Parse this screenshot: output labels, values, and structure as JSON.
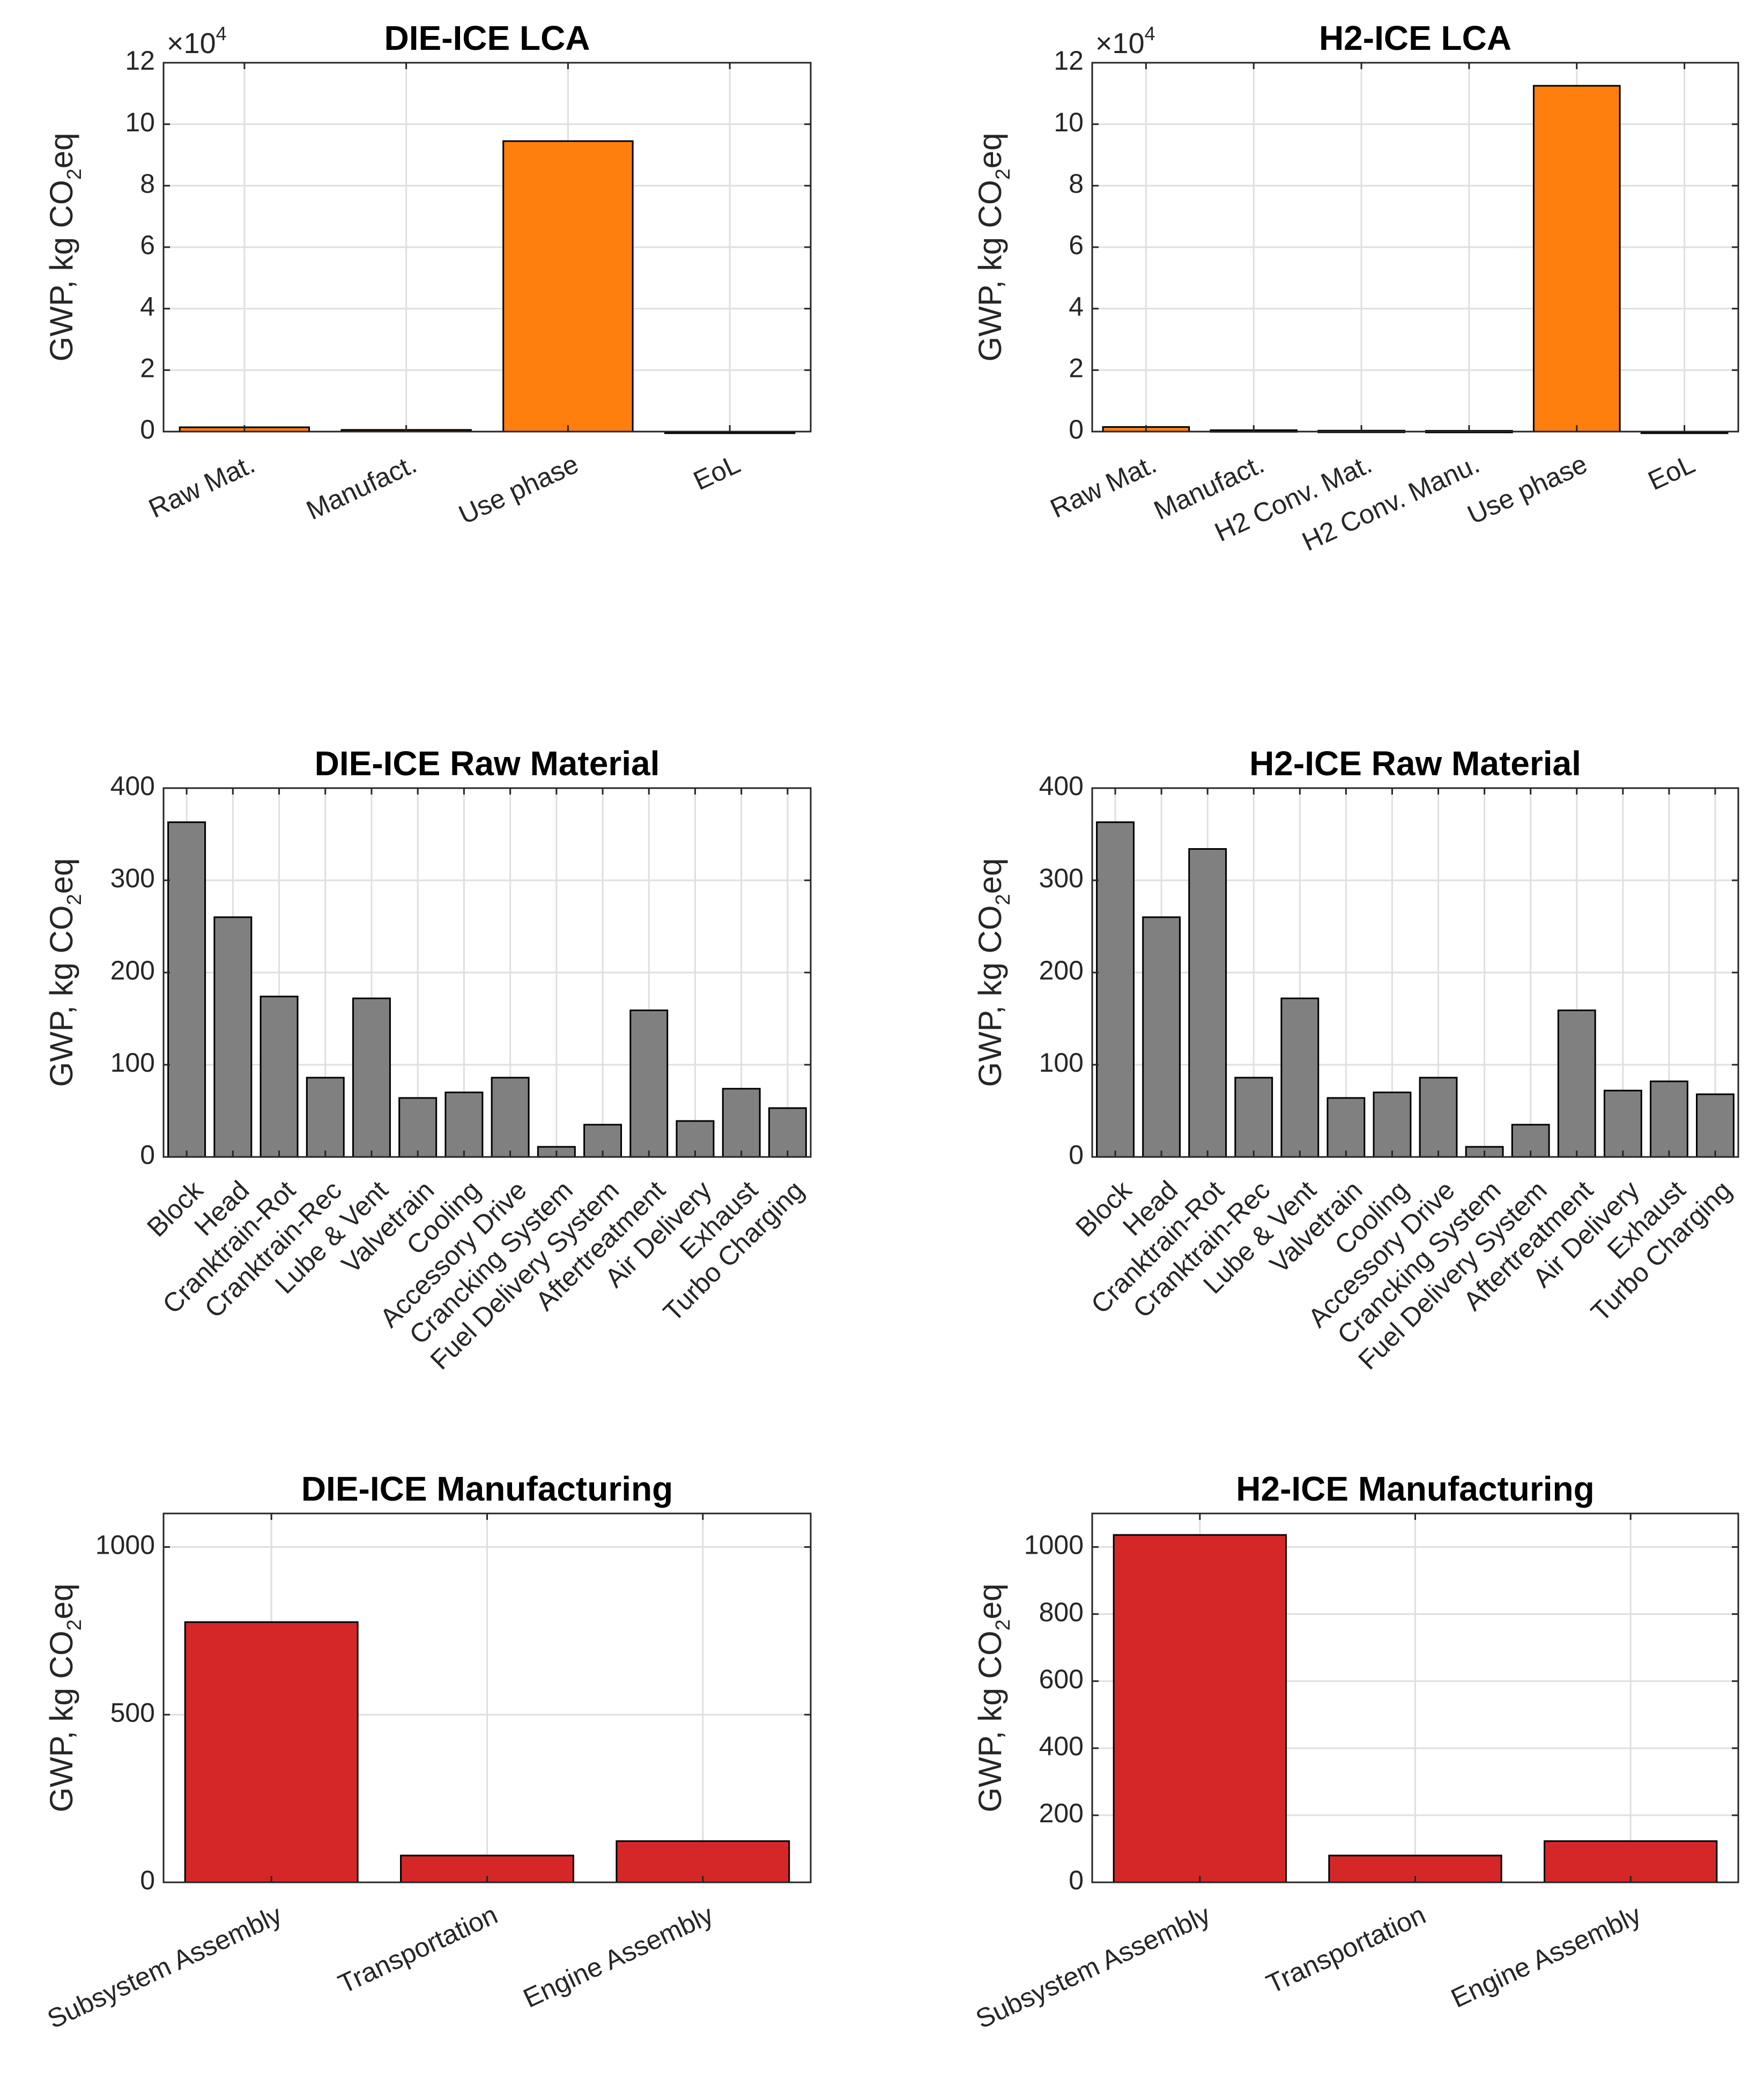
{
  "chart_data": [
    {
      "type": "bar",
      "title": "DIE-ICE LCA",
      "ylabel": "GWP, kg CO2eq",
      "ylabel_parts": {
        "pre": "GWP, kg CO",
        "sub": "2",
        "post": "eq"
      },
      "ylim": [
        0,
        120000
      ],
      "yticks": [
        0,
        20000,
        40000,
        60000,
        80000,
        100000,
        120000
      ],
      "ytick_labels": [
        "0",
        "2",
        "4",
        "6",
        "8",
        "10",
        "12"
      ],
      "exponent": {
        "prefix": "×10",
        "power": "4"
      },
      "grid": true,
      "color": "#ff7f0e",
      "label_rotation": -25,
      "categories": [
        "Raw Mat.",
        "Manufact.",
        "Use phase",
        "EoL"
      ],
      "values": [
        1400,
        550,
        94500,
        -300
      ]
    },
    {
      "type": "bar",
      "title": "H2-ICE LCA",
      "ylabel": "GWP, kg CO2eq",
      "ylabel_parts": {
        "pre": "GWP, kg CO",
        "sub": "2",
        "post": "eq"
      },
      "ylim": [
        0,
        120000
      ],
      "yticks": [
        0,
        20000,
        40000,
        60000,
        80000,
        100000,
        120000
      ],
      "ytick_labels": [
        "0",
        "2",
        "4",
        "6",
        "8",
        "10",
        "12"
      ],
      "exponent": {
        "prefix": "×10",
        "power": "4"
      },
      "grid": true,
      "color": "#ff7f0e",
      "label_rotation": -25,
      "categories": [
        "Raw Mat.",
        "Manufact.",
        "H2 Conv. Mat.",
        "H2 Conv. Manu.",
        "Use phase",
        "EoL"
      ],
      "values": [
        1500,
        450,
        300,
        250,
        112500,
        -300
      ]
    },
    {
      "type": "bar",
      "title": "DIE-ICE Raw Material",
      "ylabel": "GWP, kg CO2eq",
      "ylabel_parts": {
        "pre": "GWP, kg CO",
        "sub": "2",
        "post": "eq"
      },
      "ylim": [
        0,
        400
      ],
      "yticks": [
        0,
        100,
        200,
        300,
        400
      ],
      "ytick_labels": [
        "0",
        "100",
        "200",
        "300",
        "400"
      ],
      "grid": true,
      "color": "#808080",
      "label_rotation": -45,
      "categories": [
        "Block",
        "Head",
        "Cranktrain-Rot",
        "Cranktrain-Rec",
        "Lube & Vent",
        "Valvetrain",
        "Cooling",
        "Accessory Drive",
        "Crancking System",
        "Fuel Delivery System",
        "Aftertreatment",
        "Air Delivery",
        "Exhaust",
        "Turbo Charging"
      ],
      "values": [
        363,
        260,
        174,
        86,
        172,
        64,
        70,
        86,
        11,
        35,
        159,
        39,
        74,
        53
      ]
    },
    {
      "type": "bar",
      "title": "H2-ICE Raw Material",
      "ylabel": "GWP, kg CO2eq",
      "ylabel_parts": {
        "pre": "GWP, kg CO",
        "sub": "2",
        "post": "eq"
      },
      "ylim": [
        0,
        400
      ],
      "yticks": [
        0,
        100,
        200,
        300,
        400
      ],
      "ytick_labels": [
        "0",
        "100",
        "200",
        "300",
        "400"
      ],
      "grid": true,
      "color": "#808080",
      "label_rotation": -45,
      "categories": [
        "Block",
        "Head",
        "Cranktrain-Rot",
        "Cranktrain-Rec",
        "Lube & Vent",
        "Valvetrain",
        "Cooling",
        "Accessory Drive",
        "Crancking System",
        "Fuel Delivery System",
        "Aftertreatment",
        "Air Delivery",
        "Exhaust",
        "Turbo Charging"
      ],
      "values": [
        363,
        260,
        334,
        86,
        172,
        64,
        70,
        86,
        11,
        35,
        159,
        72,
        82,
        68
      ]
    },
    {
      "type": "bar",
      "title": "DIE-ICE Manufacturing",
      "ylabel": "GWP, kg CO2eq",
      "ylabel_parts": {
        "pre": "GWP, kg CO",
        "sub": "2",
        "post": "eq"
      },
      "ylim": [
        0,
        1100
      ],
      "yticks": [
        0,
        500,
        1000
      ],
      "ytick_labels": [
        "0",
        "500",
        "1000"
      ],
      "xgrid_extra": [
        0.5
      ],
      "grid": true,
      "color": "#d62728",
      "label_rotation": -25,
      "categories": [
        "Subsystem Assembly",
        "Transportation",
        "Engine Assembly"
      ],
      "values": [
        776,
        80,
        123
      ]
    },
    {
      "type": "bar",
      "title": "H2-ICE Manufacturing",
      "ylabel": "GWP, kg CO2eq",
      "ylabel_parts": {
        "pre": "GWP, kg CO",
        "sub": "2",
        "post": "eq"
      },
      "ylim": [
        0,
        1100
      ],
      "yticks": [
        0,
        200,
        400,
        600,
        800,
        1000
      ],
      "ytick_labels": [
        "0",
        "200",
        "400",
        "600",
        "800",
        "1000"
      ],
      "grid": true,
      "color": "#d62728",
      "label_rotation": -25,
      "categories": [
        "Subsystem Assembly",
        "Transportation",
        "Engine Assembly"
      ],
      "values": [
        1036,
        80,
        123
      ]
    }
  ]
}
